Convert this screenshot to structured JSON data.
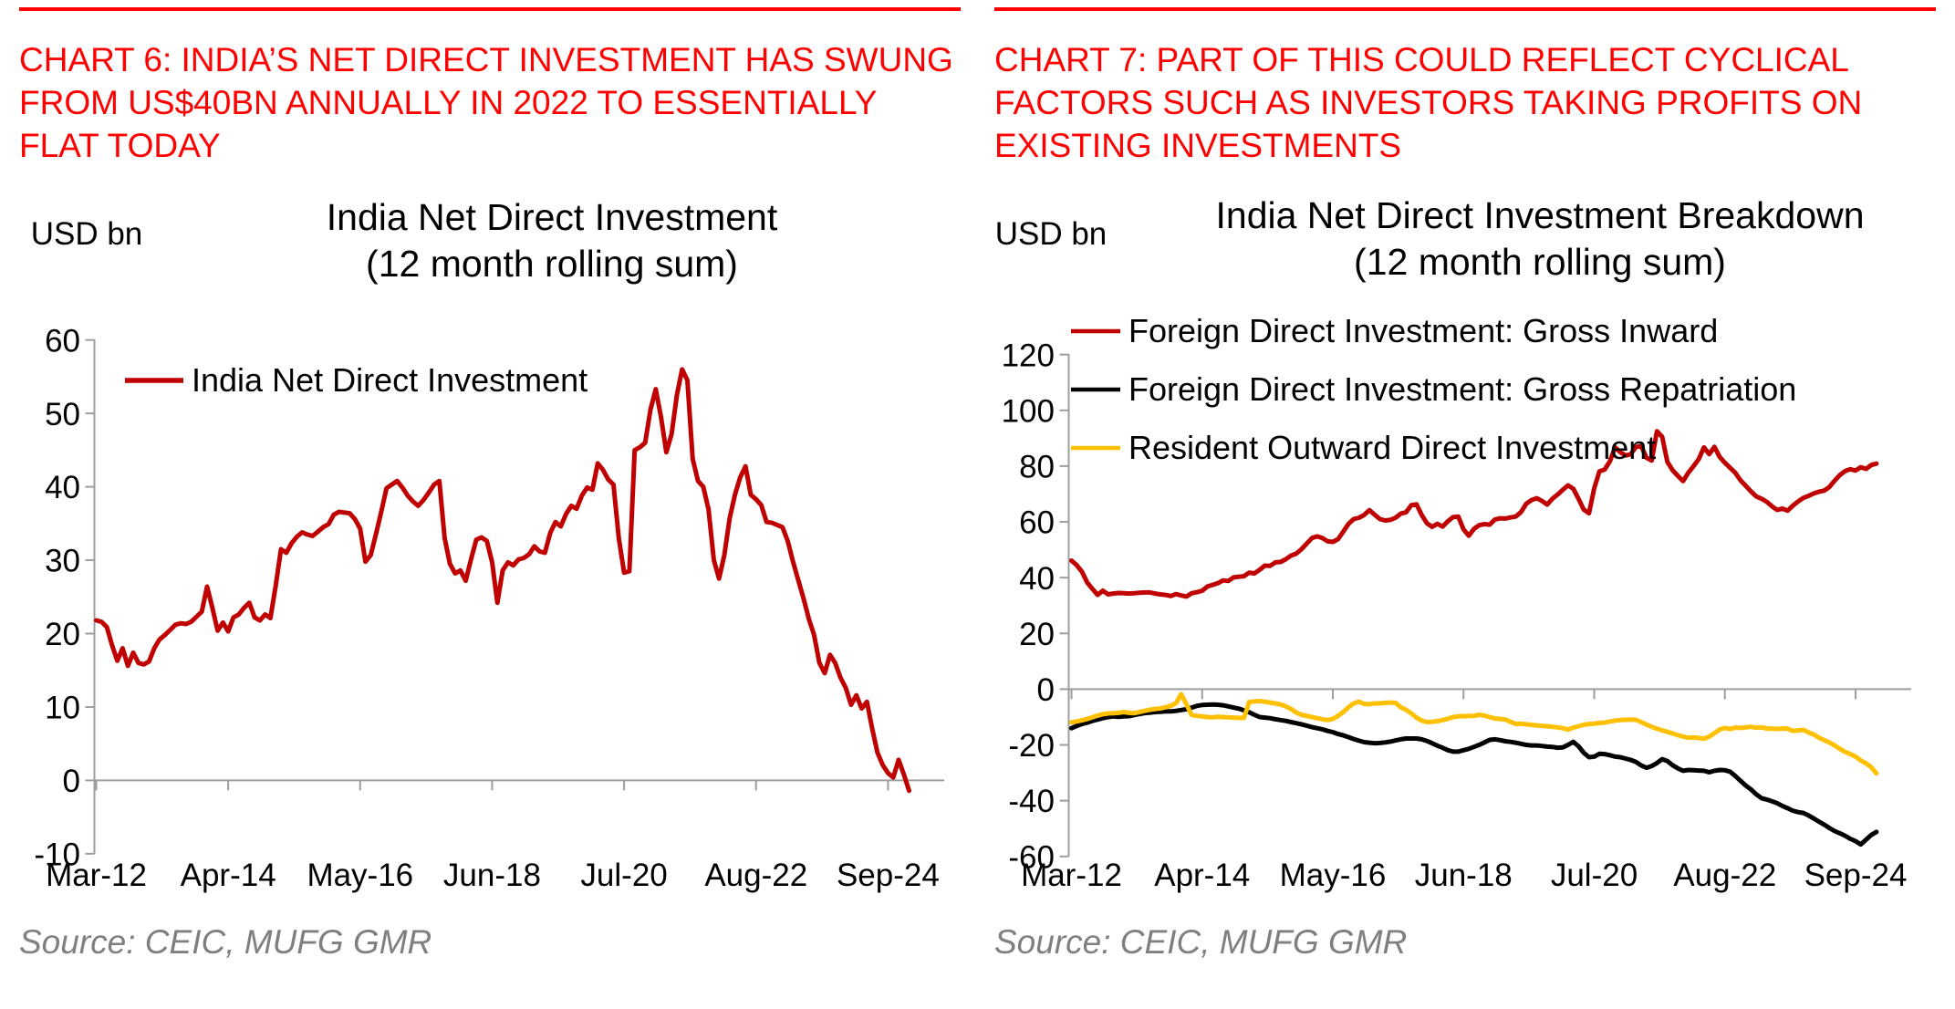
{
  "page": {
    "background": "#FFFFFF",
    "accent_red": "#FF0000",
    "left_header": "CHART 6: INDIA’S NET DIRECT INVESTMENT HAS SWUNG\nFROM US$40BN ANNUALLY IN 2022 TO ESSENTIALLY\nFLAT TODAY",
    "right_header": "CHART 7: PART OF THIS COULD REFLECT CYCLICAL\nFACTORS SUCH AS INVESTORS TAKING PROFITS ON\nEXISTING INVESTMENTS",
    "left_source": "Source: CEIC, MUFG GMR",
    "right_source": "Source: CEIC, MUFG GMR"
  },
  "chart_data": [
    {
      "type": "line",
      "title": "India Net Direct Investment\n(12 month rolling sum)",
      "ylabel": "USD bn",
      "xlabel": "",
      "x_unit": "month",
      "x_start": "Mar-12",
      "x_end": "Jan-25",
      "x": [
        "Mar-12",
        "Apr-12",
        "May-12",
        "Jun-12",
        "Jul-12",
        "Aug-12",
        "Sep-12",
        "Oct-12",
        "Nov-12",
        "Dec-12",
        "Jan-13",
        "Feb-13",
        "Mar-13",
        "Apr-13",
        "May-13",
        "Jun-13",
        "Jul-13",
        "Aug-13",
        "Sep-13",
        "Oct-13",
        "Nov-13",
        "Dec-13",
        "Jan-14",
        "Feb-14",
        "Mar-14",
        "Apr-14",
        "May-14",
        "Jun-14",
        "Jul-14",
        "Aug-14",
        "Sep-14",
        "Oct-14",
        "Nov-14",
        "Dec-14",
        "Jan-15",
        "Feb-15",
        "Mar-15",
        "Apr-15",
        "May-15",
        "Jun-15",
        "Jul-15",
        "Aug-15",
        "Sep-15",
        "Oct-15",
        "Nov-15",
        "Dec-15",
        "Jan-16",
        "Feb-16",
        "Mar-16",
        "Apr-16",
        "May-16",
        "Jun-16",
        "Jul-16",
        "Aug-16",
        "Sep-16",
        "Oct-16",
        "Nov-16",
        "Dec-16",
        "Jan-17",
        "Feb-17",
        "Mar-17",
        "Apr-17",
        "May-17",
        "Jun-17",
        "Jul-17",
        "Aug-17",
        "Sep-17",
        "Oct-17",
        "Nov-17",
        "Dec-17",
        "Jan-18",
        "Feb-18",
        "Mar-18",
        "Apr-18",
        "May-18",
        "Jun-18",
        "Jul-18",
        "Aug-18",
        "Sep-18",
        "Oct-18",
        "Nov-18",
        "Dec-18",
        "Jan-19",
        "Feb-19",
        "Mar-19",
        "Apr-19",
        "May-19",
        "Jun-19",
        "Jul-19",
        "Aug-19",
        "Sep-19",
        "Oct-19",
        "Nov-19",
        "Dec-19",
        "Jan-20",
        "Feb-20",
        "Mar-20",
        "Apr-20",
        "May-20",
        "Jun-20",
        "Jul-20",
        "Aug-20",
        "Sep-20",
        "Oct-20",
        "Nov-20",
        "Dec-20",
        "Jan-21",
        "Feb-21",
        "Mar-21",
        "Apr-21",
        "May-21",
        "Jun-21",
        "Jul-21",
        "Aug-21",
        "Sep-21",
        "Oct-21",
        "Nov-21",
        "Dec-21",
        "Jan-22",
        "Feb-22",
        "Mar-22",
        "Apr-22",
        "May-22",
        "Jun-22",
        "Jul-22",
        "Aug-22",
        "Sep-22",
        "Oct-22",
        "Nov-22",
        "Dec-22",
        "Jan-23",
        "Feb-23",
        "Mar-23",
        "Apr-23",
        "May-23",
        "Jun-23",
        "Jul-23",
        "Aug-23",
        "Sep-23",
        "Oct-23",
        "Nov-23",
        "Dec-23",
        "Jan-24",
        "Feb-24",
        "Mar-24",
        "Apr-24",
        "May-24",
        "Jun-24",
        "Jul-24",
        "Aug-24",
        "Sep-24",
        "Oct-24",
        "Nov-24",
        "Dec-24",
        "Jan-25"
      ],
      "x_tick_labels": [
        "Mar-12",
        "Apr-14",
        "May-16",
        "Jun-18",
        "Jul-20",
        "Aug-22",
        "Sep-24"
      ],
      "x_tick_every": 25,
      "ylim": [
        -10,
        60
      ],
      "y_tick_step": 10,
      "grid": false,
      "legend_position": "top-left-inside",
      "series": [
        {
          "name": "India Net Direct Investment",
          "color": "#C00000",
          "values": [
            21.8,
            21.6,
            20.9,
            18.4,
            16.3,
            18.0,
            15.6,
            17.4,
            16.0,
            15.8,
            16.2,
            18.0,
            19.2,
            19.8,
            20.5,
            21.2,
            21.4,
            21.3,
            21.6,
            22.3,
            23.0,
            26.4,
            23.5,
            20.4,
            21.5,
            20.3,
            22.2,
            22.6,
            23.5,
            24.2,
            22.2,
            21.8,
            22.6,
            22.1,
            26.5,
            31.5,
            31.0,
            32.3,
            33.2,
            33.8,
            33.5,
            33.3,
            33.9,
            34.5,
            34.9,
            36.2,
            36.6,
            36.5,
            36.4,
            35.6,
            34.3,
            29.8,
            30.7,
            33.6,
            36.6,
            39.8,
            40.3,
            40.8,
            39.9,
            38.8,
            38.0,
            37.4,
            38.2,
            39.2,
            40.3,
            40.8,
            33.0,
            29.5,
            28.2,
            28.6,
            27.2,
            30.1,
            32.8,
            33.1,
            32.6,
            29.7,
            24.2,
            28.6,
            29.7,
            29.3,
            30.1,
            30.3,
            30.8,
            31.9,
            31.2,
            31.0,
            33.7,
            35.2,
            34.6,
            36.3,
            37.4,
            37.0,
            38.8,
            39.9,
            39.6,
            43.2,
            42.3,
            41.0,
            40.3,
            33.0,
            28.3,
            28.5,
            45.0,
            45.4,
            46.0,
            50.5,
            53.3,
            49.5,
            44.7,
            47.2,
            52.5,
            56.0,
            54.5,
            43.8,
            40.8,
            40.0,
            36.9,
            30.0,
            27.5,
            30.7,
            35.7,
            38.9,
            41.3,
            42.8,
            38.9,
            38.3,
            37.5,
            35.2,
            35.1,
            34.8,
            34.5,
            32.6,
            29.8,
            27.3,
            24.8,
            22.0,
            19.8,
            16.0,
            14.6,
            17.1,
            16.0,
            14.0,
            12.6,
            10.3,
            11.6,
            9.8,
            10.7,
            7.1,
            3.8,
            2.1,
            1.0,
            0.4,
            2.8,
            0.8,
            -1.4
          ]
        }
      ]
    },
    {
      "type": "line",
      "title": "India Net Direct Investment Breakdown\n(12 month rolling sum)",
      "ylabel": "USD bn",
      "xlabel": "",
      "x_unit": "month",
      "x_start": "Mar-12",
      "x_end": "Jan-25",
      "x": [
        "Mar-12",
        "Apr-12",
        "May-12",
        "Jun-12",
        "Jul-12",
        "Aug-12",
        "Sep-12",
        "Oct-12",
        "Nov-12",
        "Dec-12",
        "Jan-13",
        "Feb-13",
        "Mar-13",
        "Apr-13",
        "May-13",
        "Jun-13",
        "Jul-13",
        "Aug-13",
        "Sep-13",
        "Oct-13",
        "Nov-13",
        "Dec-13",
        "Jan-14",
        "Feb-14",
        "Mar-14",
        "Apr-14",
        "May-14",
        "Jun-14",
        "Jul-14",
        "Aug-14",
        "Sep-14",
        "Oct-14",
        "Nov-14",
        "Dec-14",
        "Jan-15",
        "Feb-15",
        "Mar-15",
        "Apr-15",
        "May-15",
        "Jun-15",
        "Jul-15",
        "Aug-15",
        "Sep-15",
        "Oct-15",
        "Nov-15",
        "Dec-15",
        "Jan-16",
        "Feb-16",
        "Mar-16",
        "Apr-16",
        "May-16",
        "Jun-16",
        "Jul-16",
        "Aug-16",
        "Sep-16",
        "Oct-16",
        "Nov-16",
        "Dec-16",
        "Jan-17",
        "Feb-17",
        "Mar-17",
        "Apr-17",
        "May-17",
        "Jun-17",
        "Jul-17",
        "Aug-17",
        "Sep-17",
        "Oct-17",
        "Nov-17",
        "Dec-17",
        "Jan-18",
        "Feb-18",
        "Mar-18",
        "Apr-18",
        "May-18",
        "Jun-18",
        "Jul-18",
        "Aug-18",
        "Sep-18",
        "Oct-18",
        "Nov-18",
        "Dec-18",
        "Jan-19",
        "Feb-19",
        "Mar-19",
        "Apr-19",
        "May-19",
        "Jun-19",
        "Jul-19",
        "Aug-19",
        "Sep-19",
        "Oct-19",
        "Nov-19",
        "Dec-19",
        "Jan-20",
        "Feb-20",
        "Mar-20",
        "Apr-20",
        "May-20",
        "Jun-20",
        "Jul-20",
        "Aug-20",
        "Sep-20",
        "Oct-20",
        "Nov-20",
        "Dec-20",
        "Jan-21",
        "Feb-21",
        "Mar-21",
        "Apr-21",
        "May-21",
        "Jun-21",
        "Jul-21",
        "Aug-21",
        "Sep-21",
        "Oct-21",
        "Nov-21",
        "Dec-21",
        "Jan-22",
        "Feb-22",
        "Mar-22",
        "Apr-22",
        "May-22",
        "Jun-22",
        "Jul-22",
        "Aug-22",
        "Sep-22",
        "Oct-22",
        "Nov-22",
        "Dec-22",
        "Jan-23",
        "Feb-23",
        "Mar-23",
        "Apr-23",
        "May-23",
        "Jun-23",
        "Jul-23",
        "Aug-23",
        "Sep-23",
        "Oct-23",
        "Nov-23",
        "Dec-23",
        "Jan-24",
        "Feb-24",
        "Mar-24",
        "Apr-24",
        "May-24",
        "Jun-24",
        "Jul-24",
        "Aug-24",
        "Sep-24",
        "Oct-24",
        "Nov-24",
        "Dec-24",
        "Jan-25"
      ],
      "x_tick_labels": [
        "Mar-12",
        "Apr-14",
        "May-16",
        "Jun-18",
        "Jul-20",
        "Aug-22",
        "Sep-24"
      ],
      "x_tick_every": 25,
      "ylim": [
        -60,
        120
      ],
      "y_tick_step": 20,
      "grid": false,
      "legend_position": "top-left-inside",
      "series": [
        {
          "name": "Foreign Direct Investment: Gross Inward",
          "color": "#C00000",
          "values": [
            46.1,
            44.5,
            42.1,
            38.3,
            36.0,
            33.8,
            35.3,
            34.0,
            34.3,
            34.5,
            34.4,
            34.3,
            34.4,
            34.6,
            34.7,
            34.7,
            34.3,
            34.0,
            33.8,
            33.4,
            34.1,
            33.6,
            33.2,
            34.4,
            34.8,
            35.3,
            36.8,
            37.4,
            38.0,
            39.0,
            38.8,
            40.1,
            40.3,
            40.5,
            41.8,
            41.5,
            42.8,
            44.3,
            44.2,
            45.5,
            45.6,
            46.6,
            47.9,
            48.6,
            50.2,
            52.2,
            54.2,
            54.8,
            54.2,
            53.0,
            52.8,
            53.8,
            56.5,
            59.3,
            61.0,
            61.5,
            62.5,
            64.2,
            62.6,
            61.0,
            60.5,
            60.7,
            61.5,
            63.0,
            63.4,
            66.0,
            66.3,
            62.5,
            59.5,
            58.2,
            59.3,
            58.3,
            60.2,
            61.7,
            61.9,
            57.3,
            55.0,
            57.5,
            58.8,
            59.2,
            59.0,
            60.8,
            61.3,
            61.2,
            61.6,
            61.9,
            63.5,
            66.5,
            67.8,
            68.5,
            67.5,
            66.2,
            68.3,
            69.8,
            71.5,
            73.1,
            71.9,
            68.3,
            64.4,
            63.1,
            72.0,
            78.1,
            78.8,
            81.7,
            86.7,
            85.0,
            83.8,
            84.3,
            86.9,
            87.1,
            83.0,
            82.0,
            92.5,
            90.5,
            81.5,
            78.5,
            76.5,
            74.6,
            77.6,
            80.0,
            82.5,
            86.7,
            84.3,
            86.9,
            83.3,
            81.2,
            79.4,
            77.6,
            74.9,
            72.9,
            70.9,
            69.1,
            68.3,
            67.2,
            65.6,
            64.3,
            64.8,
            64.0,
            65.8,
            67.3,
            68.6,
            69.3,
            70.2,
            70.8,
            71.2,
            72.5,
            74.8,
            76.8,
            78.2,
            78.9,
            78.4,
            79.6,
            79.0,
            80.4,
            80.9
          ]
        },
        {
          "name": "Foreign Direct Investment: Gross Repatriation",
          "color": "#000000",
          "values": [
            -14.0,
            -13.2,
            -12.5,
            -12.0,
            -11.4,
            -10.9,
            -10.4,
            -10.0,
            -9.8,
            -9.9,
            -9.8,
            -9.7,
            -9.3,
            -8.9,
            -8.6,
            -8.4,
            -8.2,
            -8.1,
            -8.0,
            -8.0,
            -7.8,
            -7.5,
            -7.2,
            -6.6,
            -6.0,
            -5.7,
            -5.6,
            -5.5,
            -5.6,
            -5.8,
            -6.2,
            -6.6,
            -7.0,
            -7.6,
            -8.3,
            -9.2,
            -10.0,
            -10.2,
            -10.4,
            -10.8,
            -11.1,
            -11.4,
            -11.8,
            -12.2,
            -12.6,
            -13.1,
            -13.6,
            -14.0,
            -14.4,
            -15.0,
            -15.4,
            -16.1,
            -16.6,
            -17.2,
            -17.9,
            -18.5,
            -19.0,
            -19.2,
            -19.4,
            -19.3,
            -19.1,
            -18.8,
            -18.4,
            -18.0,
            -17.7,
            -17.7,
            -17.7,
            -18.0,
            -18.6,
            -19.4,
            -20.3,
            -21.0,
            -21.9,
            -22.4,
            -22.4,
            -21.9,
            -21.4,
            -20.7,
            -20.0,
            -19.1,
            -18.2,
            -18.0,
            -18.3,
            -18.7,
            -18.9,
            -19.2,
            -19.6,
            -20.0,
            -20.2,
            -20.2,
            -20.4,
            -20.6,
            -20.7,
            -21.0,
            -20.9,
            -20.0,
            -18.9,
            -20.5,
            -22.8,
            -24.4,
            -24.2,
            -23.2,
            -23.3,
            -23.7,
            -24.2,
            -24.4,
            -24.9,
            -25.4,
            -26.1,
            -27.4,
            -28.2,
            -27.6,
            -26.5,
            -25.1,
            -25.8,
            -27.3,
            -28.4,
            -29.3,
            -29.0,
            -29.1,
            -29.2,
            -29.3,
            -29.8,
            -29.3,
            -29.0,
            -29.1,
            -29.6,
            -31.2,
            -32.9,
            -34.6,
            -36.0,
            -37.7,
            -39.1,
            -39.6,
            -40.2,
            -40.9,
            -41.9,
            -42.7,
            -43.6,
            -44.1,
            -44.4,
            -45.3,
            -46.4,
            -47.5,
            -48.6,
            -49.8,
            -50.9,
            -51.7,
            -52.6,
            -53.7,
            -54.5,
            -55.7,
            -54.0,
            -52.3,
            -51.2
          ]
        },
        {
          "name": "Resident Outward Direct Investment",
          "color": "#FFC000",
          "values": [
            -11.9,
            -11.6,
            -11.2,
            -10.7,
            -10.1,
            -9.5,
            -9.0,
            -8.7,
            -8.6,
            -8.5,
            -8.2,
            -8.5,
            -8.6,
            -8.2,
            -7.8,
            -7.4,
            -7.1,
            -6.9,
            -6.5,
            -6.0,
            -5.0,
            -1.8,
            -5.5,
            -9.3,
            -9.6,
            -9.8,
            -10.0,
            -10.1,
            -9.9,
            -10.0,
            -10.1,
            -10.2,
            -10.3,
            -10.3,
            -4.6,
            -4.4,
            -4.3,
            -4.5,
            -4.8,
            -5.1,
            -5.5,
            -6.2,
            -7.1,
            -8.4,
            -9.2,
            -9.6,
            -10.0,
            -10.4,
            -10.8,
            -11.1,
            -10.7,
            -9.6,
            -8.2,
            -6.5,
            -5.1,
            -4.5,
            -5.3,
            -5.4,
            -5.1,
            -5.1,
            -4.9,
            -4.8,
            -4.9,
            -6.5,
            -7.4,
            -8.7,
            -10.2,
            -11.3,
            -11.8,
            -11.7,
            -11.5,
            -11.1,
            -10.6,
            -10.0,
            -9.8,
            -9.7,
            -9.6,
            -9.6,
            -9.2,
            -9.5,
            -10.0,
            -10.5,
            -10.7,
            -10.9,
            -11.7,
            -12.5,
            -12.4,
            -12.6,
            -12.8,
            -13.0,
            -13.2,
            -13.3,
            -13.5,
            -13.7,
            -14.0,
            -14.5,
            -13.8,
            -13.3,
            -12.8,
            -12.5,
            -12.4,
            -12.1,
            -12.0,
            -11.6,
            -11.3,
            -11.1,
            -11.0,
            -10.9,
            -11.0,
            -11.8,
            -12.7,
            -13.5,
            -14.2,
            -14.8,
            -15.3,
            -15.9,
            -16.5,
            -17.0,
            -17.4,
            -17.3,
            -17.5,
            -17.8,
            -17.0,
            -15.8,
            -14.5,
            -13.9,
            -14.3,
            -13.8,
            -13.9,
            -13.7,
            -13.5,
            -13.8,
            -13.7,
            -14.1,
            -14.2,
            -14.3,
            -14.1,
            -14.2,
            -15.0,
            -14.8,
            -14.6,
            -15.5,
            -16.3,
            -17.4,
            -18.3,
            -19.1,
            -20.2,
            -21.4,
            -22.5,
            -23.3,
            -24.2,
            -25.6,
            -26.6,
            -28.0,
            -30.2
          ]
        }
      ]
    }
  ]
}
